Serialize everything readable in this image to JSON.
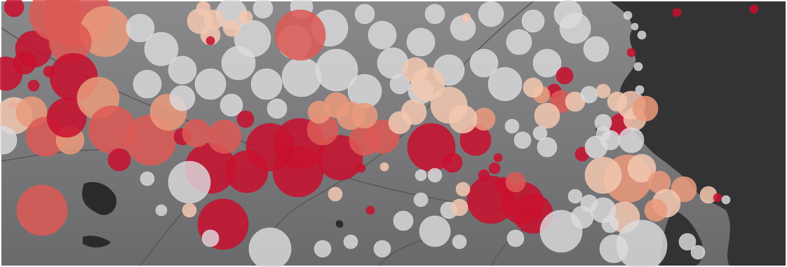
{
  "map": {
    "colors": {
      "land": "#7b7b7d",
      "land_dark": "#6b6b6d",
      "water": "#333335",
      "lake": "#2a2a2c",
      "road": "#58585a",
      "frame": "#ffffff"
    },
    "bubble_scale": [
      {
        "level": "very-high",
        "color": "#c8102e"
      },
      {
        "level": "high",
        "color": "#dd5a55"
      },
      {
        "level": "medium",
        "color": "#ea9a7c"
      },
      {
        "level": "low",
        "color": "#f2c7b0"
      },
      {
        "level": "very-low",
        "color": "#dcdcde"
      }
    ],
    "features": [
      "land",
      "sea",
      "lakes",
      "roads",
      "data-bubbles"
    ]
  }
}
